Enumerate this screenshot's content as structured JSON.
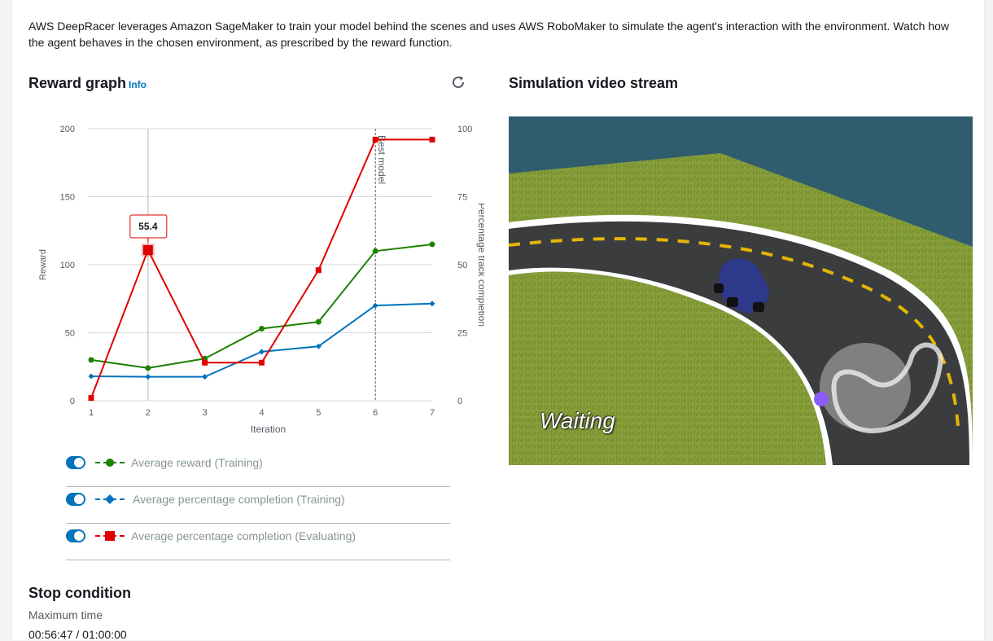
{
  "intro_text": "AWS DeepRacer leverages Amazon SageMaker to train your model behind the scenes and uses AWS RoboMaker to simulate the agent's interaction with the environment. Watch how the agent behaves in the chosen environment, as prescribed by the reward function.",
  "reward_graph": {
    "title": "Reward graph",
    "info_label": "Info",
    "refresh_icon": "refresh-icon",
    "tooltip_value": "55.4",
    "best_model_label": "Best model"
  },
  "legend": [
    {
      "label": "Average reward (Training)",
      "color": "#1d8102",
      "marker": "circle",
      "enabled": true
    },
    {
      "label": "Average percentage completion (Training)",
      "color": "#0073bb",
      "marker": "diamond",
      "enabled": true
    },
    {
      "label": "Average percentage completion (Evaluating)",
      "color": "#df0000",
      "marker": "square",
      "enabled": true
    }
  ],
  "chart_data": {
    "type": "line",
    "xlabel": "Iteration",
    "ylabel": "Reward",
    "y2label": "Percentage track completion",
    "x": [
      1,
      2,
      3,
      4,
      5,
      6,
      7
    ],
    "xticks": [
      "1",
      "2",
      "3",
      "4",
      "5",
      "6",
      "7"
    ],
    "ylim": [
      0,
      200
    ],
    "yticks": [
      "0",
      "50",
      "100",
      "150",
      "200"
    ],
    "y2lim": [
      0,
      100
    ],
    "y2ticks": [
      "0",
      "25",
      "50",
      "75",
      "100"
    ],
    "best_model_x": 6,
    "hover_x": 2,
    "series": [
      {
        "name": "Average reward (Training)",
        "axis": "left",
        "color": "#1d8102",
        "marker": "circle",
        "values": [
          30,
          24,
          31,
          53,
          58,
          110,
          115
        ]
      },
      {
        "name": "Average percentage completion (Training)",
        "axis": "right",
        "color": "#0073bb",
        "marker": "diamond",
        "values": [
          9,
          8.8,
          8.8,
          18,
          20,
          35,
          35.7
        ]
      },
      {
        "name": "Average percentage completion (Evaluating)",
        "axis": "right",
        "color": "#df0000",
        "marker": "square",
        "values": [
          1,
          55.4,
          14,
          14,
          48,
          96,
          96
        ]
      }
    ]
  },
  "video": {
    "title": "Simulation video stream",
    "status": "Waiting"
  },
  "stop_condition": {
    "title": "Stop condition",
    "label": "Maximum time",
    "value": "00:56:47 / 01:00:00"
  }
}
